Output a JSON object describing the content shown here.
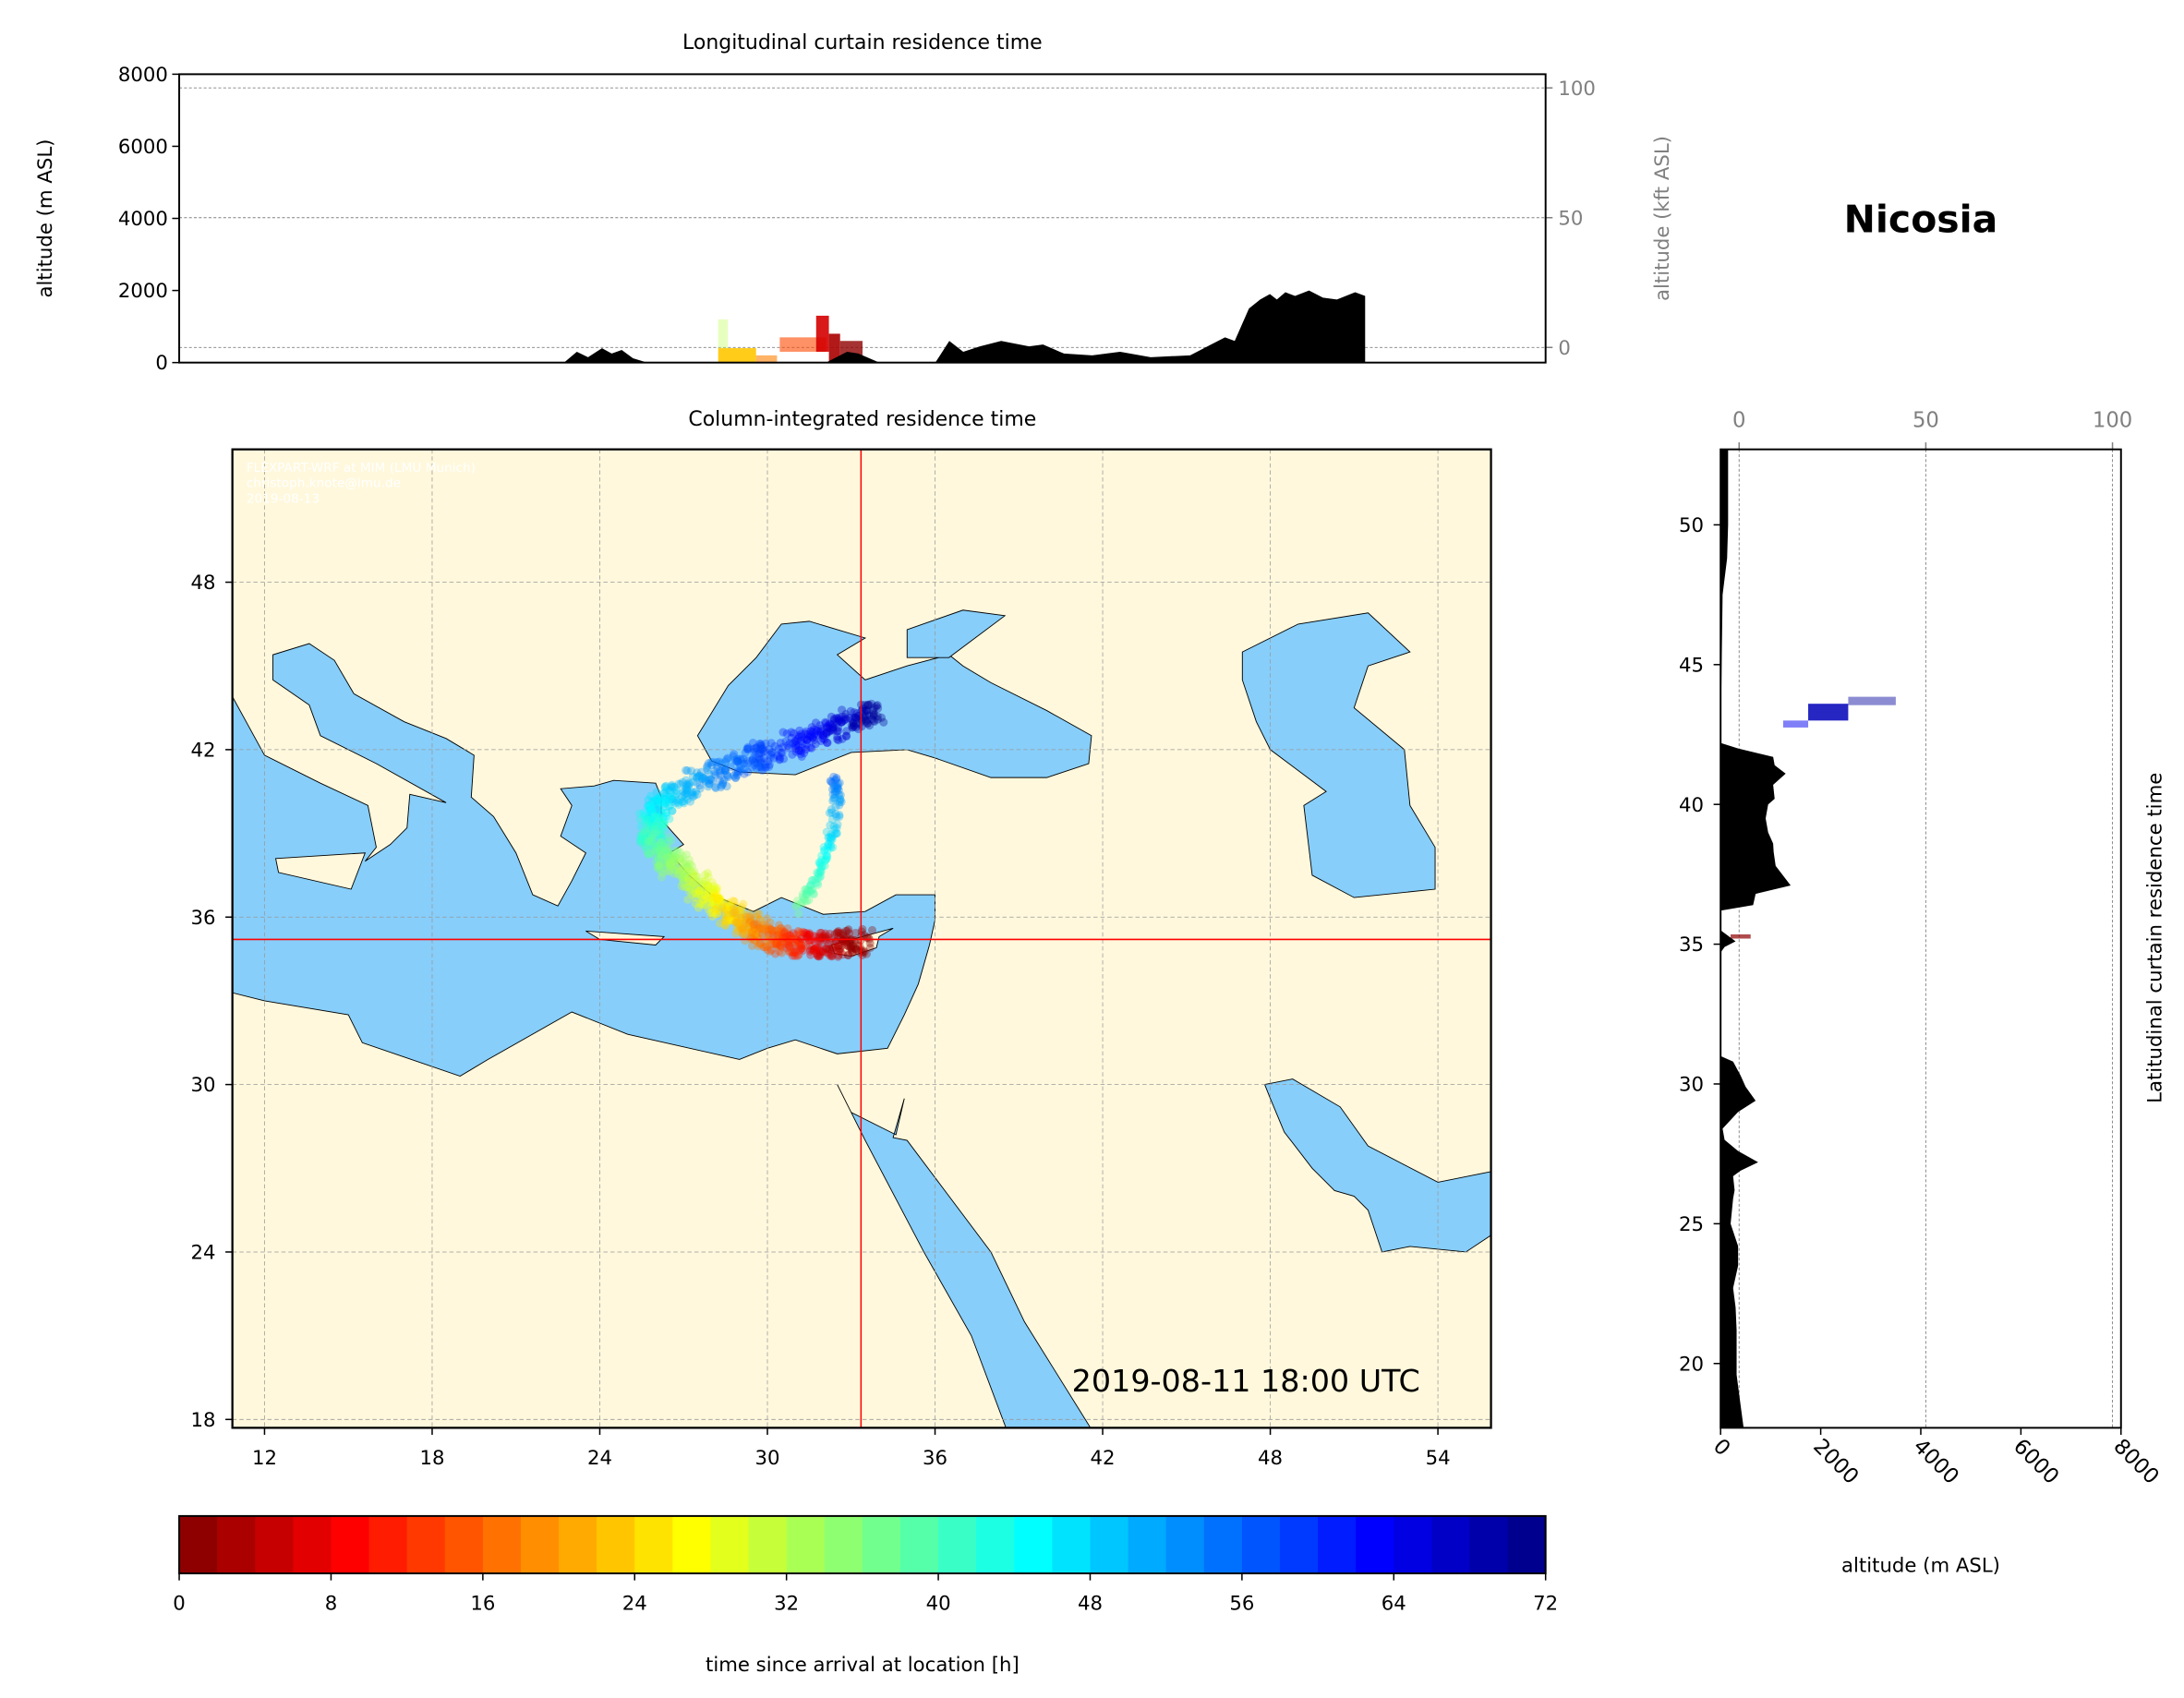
{
  "station_title": "Nicosia",
  "credits": [
    "FLEXPART-WRF at MIM (LMU Munich)",
    "christoph.knote@lmu.de",
    "2019-08-13"
  ],
  "timestamp": "2019-08-11 18:00 UTC",
  "colors": {
    "land": "#fff8dc",
    "sea": "#87cefa",
    "crosshair": "#ff0000",
    "terrain": "#000000"
  },
  "chart_data": [
    {
      "id": "longitudinal",
      "type": "area",
      "title": "Longitudinal curtain residence time",
      "ylabel": "altitude (m ASL)",
      "ylabel_right": "altitude (kft ASL)",
      "xlim": [
        10.85,
        55.9
      ],
      "ylim": [
        0,
        8000
      ],
      "yticks": [
        0,
        2000,
        4000,
        6000,
        8000
      ],
      "yticks_right": [
        0,
        50,
        100
      ],
      "grid": true,
      "terrain": [
        [
          23.54,
          0
        ],
        [
          23.96,
          300
        ],
        [
          24.33,
          150
        ],
        [
          24.79,
          400
        ],
        [
          25.11,
          250
        ],
        [
          25.44,
          350
        ],
        [
          25.81,
          120
        ],
        [
          26.27,
          0
        ],
        [
          32.18,
          0
        ],
        [
          32.87,
          300
        ],
        [
          33.24,
          250
        ],
        [
          33.93,
          0
        ],
        [
          35.78,
          0
        ],
        [
          36.24,
          600
        ],
        [
          36.7,
          300
        ],
        [
          37.25,
          450
        ],
        [
          37.95,
          600
        ],
        [
          38.87,
          450
        ],
        [
          39.33,
          500
        ],
        [
          40.02,
          250
        ],
        [
          40.95,
          200
        ],
        [
          41.87,
          300
        ],
        [
          42.88,
          150
        ],
        [
          44.18,
          200
        ],
        [
          44.87,
          500
        ],
        [
          45.33,
          700
        ],
        [
          45.65,
          600
        ],
        [
          46.12,
          1500
        ],
        [
          46.49,
          1750
        ],
        [
          46.81,
          1900
        ],
        [
          47.04,
          1750
        ],
        [
          47.32,
          1950
        ],
        [
          47.64,
          1850
        ],
        [
          48.1,
          2000
        ],
        [
          48.56,
          1800
        ],
        [
          49.02,
          1750
        ],
        [
          49.62,
          1950
        ],
        [
          49.95,
          1850
        ],
        [
          49.95,
          0
        ]
      ],
      "residence": [
        [
          28.62,
          28.94,
          400,
          1200,
          32,
          0.35
        ],
        [
          28.62,
          29.87,
          0,
          400,
          23,
          0.9
        ],
        [
          29.87,
          30.56,
          0,
          200,
          18,
          0.6
        ],
        [
          30.65,
          32.18,
          300,
          700,
          14,
          0.6
        ],
        [
          31.85,
          32.27,
          300,
          1300,
          6,
          0.9
        ],
        [
          32.27,
          32.64,
          0,
          800,
          3,
          0.9
        ],
        [
          32.64,
          33.38,
          0,
          600,
          1,
          0.8
        ]
      ]
    },
    {
      "id": "column",
      "type": "scatter",
      "title": "Column-integrated residence time",
      "xlim": [
        10.85,
        55.9
      ],
      "ylim": [
        17.7,
        52.76
      ],
      "xticks": [
        12,
        18,
        24,
        30,
        36,
        42,
        48,
        54
      ],
      "yticks": [
        18,
        24,
        30,
        36,
        42,
        48
      ],
      "grid": true,
      "station": [
        33.35,
        35.2
      ],
      "plume_track": [
        [
          33.4,
          35.15,
          0
        ],
        [
          32.5,
          35.0,
          4
        ],
        [
          31.5,
          35.0,
          9
        ],
        [
          30.6,
          35.1,
          14
        ],
        [
          29.8,
          35.4,
          18
        ],
        [
          29.0,
          35.9,
          23
        ],
        [
          28.2,
          36.5,
          27
        ],
        [
          27.4,
          37.2,
          31
        ],
        [
          26.6,
          37.9,
          35
        ],
        [
          26.0,
          38.6,
          39
        ],
        [
          25.8,
          39.3,
          43
        ],
        [
          26.2,
          40.0,
          47
        ],
        [
          27.2,
          40.7,
          51
        ],
        [
          28.6,
          41.3,
          55
        ],
        [
          30.0,
          41.9,
          59
        ],
        [
          31.5,
          42.4,
          63
        ],
        [
          32.8,
          43.0,
          67
        ],
        [
          33.8,
          43.4,
          71
        ]
      ],
      "plume_branch": [
        [
          31.0,
          36.2,
          36
        ],
        [
          31.6,
          37.0,
          40
        ],
        [
          32.0,
          38.0,
          44
        ],
        [
          32.3,
          39.0,
          48
        ],
        [
          32.5,
          40.2,
          52
        ],
        [
          32.4,
          41.0,
          56
        ]
      ]
    },
    {
      "id": "colorbar",
      "type": "heatmap",
      "label": "time since arrival at location [h]",
      "colormap": "jet",
      "range": [
        0,
        72
      ],
      "ticks": [
        0,
        8,
        16,
        24,
        32,
        40,
        48,
        56,
        64,
        72
      ]
    },
    {
      "id": "latitudinal",
      "type": "area",
      "title": "Latitudinal curtain residence time",
      "xlabel": "altitude (m ASL)",
      "xlim": [
        0,
        8000
      ],
      "ylim": [
        17.7,
        52.7
      ],
      "xticks": [
        0,
        2000,
        4000,
        6000,
        8000
      ],
      "xticks_top": [
        0,
        50,
        100
      ],
      "yticks": [
        20,
        25,
        30,
        35,
        40,
        45,
        50
      ],
      "grid": true,
      "terrain": [
        [
          52.7,
          150
        ],
        [
          50,
          150
        ],
        [
          48.8,
          130
        ],
        [
          47.5,
          40
        ],
        [
          42.2,
          0
        ],
        [
          42.0,
          350
        ],
        [
          41.7,
          1050
        ],
        [
          41.4,
          1080
        ],
        [
          41.1,
          1300
        ],
        [
          40.7,
          1050
        ],
        [
          40.2,
          1080
        ],
        [
          40.0,
          950
        ],
        [
          39.5,
          900
        ],
        [
          39.0,
          950
        ],
        [
          38.6,
          1050
        ],
        [
          38.3,
          1060
        ],
        [
          37.8,
          1100
        ],
        [
          37.1,
          1400
        ],
        [
          36.8,
          700
        ],
        [
          36.4,
          650
        ],
        [
          36.2,
          0
        ],
        [
          35.5,
          0
        ],
        [
          35.3,
          150
        ],
        [
          35.1,
          300
        ],
        [
          34.9,
          80
        ],
        [
          34.7,
          0
        ],
        [
          31,
          0
        ],
        [
          30.8,
          250
        ],
        [
          30.3,
          400
        ],
        [
          29.9,
          500
        ],
        [
          29.4,
          700
        ],
        [
          29.0,
          350
        ],
        [
          28.4,
          40
        ],
        [
          28.0,
          80
        ],
        [
          27.6,
          350
        ],
        [
          27.2,
          750
        ],
        [
          26.9,
          400
        ],
        [
          26.7,
          250
        ],
        [
          26.2,
          280
        ],
        [
          25.9,
          250
        ],
        [
          25.0,
          200
        ],
        [
          24.2,
          350
        ],
        [
          23.5,
          350
        ],
        [
          22.7,
          250
        ],
        [
          22.0,
          300
        ],
        [
          21.2,
          320
        ],
        [
          19.6,
          320
        ],
        [
          18.5,
          400
        ],
        [
          17.7,
          460
        ]
      ],
      "residence": [
        [
          1250,
          1750,
          42.75,
          43.0,
          64,
          0.5
        ],
        [
          1750,
          2550,
          43.0,
          43.6,
          68,
          0.85
        ],
        [
          2550,
          3500,
          43.55,
          43.85,
          70,
          0.45
        ],
        [
          200,
          600,
          35.2,
          35.35,
          1,
          0.7
        ]
      ]
    }
  ]
}
